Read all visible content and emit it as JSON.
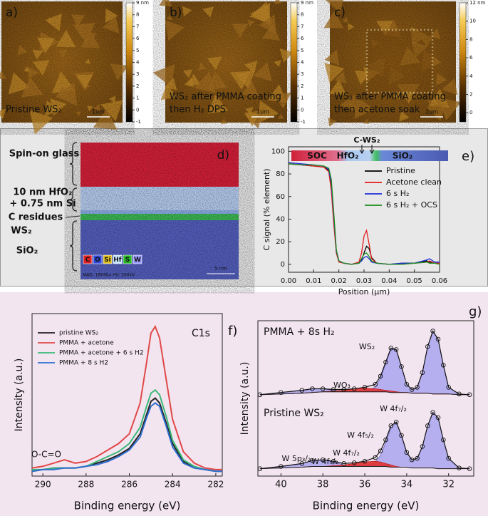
{
  "images": [
    {
      "label": "a)",
      "caption": [
        "Pristine WS₂"
      ],
      "scale_bar": "1um",
      "colorbar": {
        "lim": [
          -1,
          9
        ],
        "ticks": [
          -1,
          0,
          1,
          2,
          3,
          4,
          5,
          6,
          7,
          8,
          {
            "value": 9,
            "label": "9 nm"
          }
        ]
      }
    },
    {
      "label": "b)",
      "caption": [
        "WS₂ after PMMA coating",
        "then H₂ DPS"
      ],
      "scale_bar": "1um",
      "colorbar": {
        "lim": [
          -1,
          9
        ],
        "ticks": [
          -1,
          0,
          1,
          2,
          3,
          4,
          5,
          6,
          7,
          8,
          {
            "value": 9,
            "label": "9 nm"
          }
        ]
      }
    },
    {
      "label": "c)",
      "caption": [
        "WS₂ after PMMA coating",
        "then acetone soak"
      ],
      "scale_bar": "1um",
      "colorbar": {
        "lim": [
          -1,
          12
        ],
        "ticks": [
          0,
          2,
          4,
          6,
          8,
          10,
          {
            "value": 12,
            "label": "12 nm"
          }
        ]
      }
    }
  ],
  "eds": {
    "label": "d)",
    "layers": [
      "Spin-on glass",
      "10 nm HfO₂",
      "+ 0.75 nm Si",
      "C residues",
      "WS₂",
      "SiO₂"
    ],
    "elements": [
      "C",
      "O",
      "Si",
      "Hf",
      "S",
      "W"
    ],
    "footer": "MAG: 1800kx  HV: 200kV",
    "scale_bar": "5 nm"
  },
  "chart_data": [
    {
      "type": "line",
      "panel_label": "e)",
      "xlabel": "Position (μm)",
      "ylabel": "C signal (% element)",
      "layer_bar": [
        "SOC",
        "HfO₂",
        "C-WS₂",
        "SiO₂"
      ],
      "xlim": [
        0,
        0.06
      ],
      "ylim": [
        -7,
        104
      ],
      "xticks": [
        {
          "value": 0,
          "label": "0.00"
        },
        {
          "value": 0.01,
          "label": "0.01"
        },
        {
          "value": 0.02,
          "label": "0.02"
        },
        {
          "value": 0.03,
          "label": "0.03"
        },
        {
          "value": 0.04,
          "label": "0.04"
        },
        {
          "value": 0.05,
          "label": "0.05"
        },
        {
          "value": 0.06,
          "label": "0.06"
        }
      ],
      "yticks": [
        0,
        20,
        40,
        60,
        80,
        100
      ],
      "legend": "upper right",
      "x": [
        0,
        0.005,
        0.01,
        0.014,
        0.016,
        0.017,
        0.018,
        0.019,
        0.02,
        0.022,
        0.025,
        0.028,
        0.029,
        0.03,
        0.031,
        0.032,
        0.033,
        0.035,
        0.04,
        0.045,
        0.05,
        0.055,
        0.056,
        0.058,
        0.06
      ],
      "series": [
        {
          "name": "Pristine",
          "color": "#000000",
          "values": [
            89,
            88,
            87,
            86,
            83,
            70,
            40,
            12,
            3,
            1,
            0,
            1,
            4,
            10,
            16,
            14,
            6,
            1,
            0,
            1,
            1,
            3,
            2,
            1,
            1
          ]
        },
        {
          "name": "Acetone clean",
          "color": "#e41a1c",
          "values": [
            89,
            88,
            87,
            86,
            82,
            65,
            35,
            10,
            2,
            1,
            0,
            2,
            10,
            25,
            30,
            18,
            5,
            1,
            0,
            0,
            1,
            2,
            3,
            1,
            1
          ]
        },
        {
          "name": "6 s H₂",
          "color": "#1f2fd8",
          "values": [
            90,
            89,
            88,
            87,
            84,
            72,
            42,
            12,
            3,
            1,
            0,
            1,
            3,
            6,
            7,
            5,
            2,
            1,
            0,
            1,
            1,
            4,
            5,
            2,
            2
          ]
        },
        {
          "name": "6 s H₂ + OCS",
          "color": "#1e8c1e",
          "values": [
            89,
            88,
            88,
            87,
            85,
            75,
            45,
            13,
            3,
            1,
            0,
            1,
            5,
            9,
            10,
            7,
            3,
            1,
            0,
            0,
            1,
            2,
            1,
            1,
            0
          ]
        }
      ]
    },
    {
      "type": "line",
      "panel_label": "f)",
      "annotations": [
        "C1s",
        "O-C=O"
      ],
      "xlabel": "Binding energy (eV)",
      "ylabel": "Intensity (a.u.)",
      "xlim": [
        290.5,
        281.7
      ],
      "ylim": [
        0,
        1
      ],
      "xticks": [
        290,
        288,
        286,
        284,
        282
      ],
      "legend": "upper left",
      "x": [
        290.5,
        290,
        289.5,
        289,
        288.5,
        288,
        287.5,
        287,
        286.5,
        286,
        285.5,
        285.2,
        285,
        284.8,
        284.6,
        284.3,
        284,
        283.5,
        283,
        282.5,
        282,
        281.7
      ],
      "series": [
        {
          "name": "pristine WS₂",
          "color": "#222222",
          "values": [
            0.03,
            0.04,
            0.05,
            0.05,
            0.05,
            0.06,
            0.08,
            0.1,
            0.13,
            0.17,
            0.26,
            0.38,
            0.46,
            0.48,
            0.45,
            0.33,
            0.2,
            0.09,
            0.05,
            0.04,
            0.03,
            0.03
          ]
        },
        {
          "name": "PMMA + acetone",
          "color": "#e04848",
          "values": [
            0.05,
            0.06,
            0.08,
            0.1,
            0.08,
            0.09,
            0.12,
            0.16,
            0.2,
            0.26,
            0.45,
            0.7,
            0.88,
            0.92,
            0.85,
            0.6,
            0.35,
            0.15,
            0.08,
            0.05,
            0.04,
            0.04
          ]
        },
        {
          "name": "PMMA + acetone + 6 s H2",
          "color": "#3cb878",
          "values": [
            0.04,
            0.04,
            0.05,
            0.05,
            0.05,
            0.06,
            0.09,
            0.12,
            0.15,
            0.2,
            0.3,
            0.43,
            0.51,
            0.53,
            0.5,
            0.37,
            0.22,
            0.1,
            0.06,
            0.04,
            0.03,
            0.03
          ]
        },
        {
          "name": "PMMA + 8 s H2",
          "color": "#2f6fd0",
          "values": [
            0.03,
            0.04,
            0.04,
            0.05,
            0.05,
            0.06,
            0.07,
            0.09,
            0.12,
            0.16,
            0.24,
            0.36,
            0.43,
            0.45,
            0.43,
            0.31,
            0.18,
            0.08,
            0.05,
            0.04,
            0.03,
            0.03
          ]
        }
      ]
    },
    {
      "type": "xps",
      "panel_label": "g)",
      "xlabel": "Binding energy (eV)",
      "ylabel": "Intensity (a.u.)",
      "xlim": [
        41.1,
        30.8
      ],
      "ylim": [
        0,
        2.1
      ],
      "xticks": [
        40,
        38,
        36,
        34,
        32
      ],
      "x": [
        41,
        40,
        39,
        38.5,
        38,
        37.5,
        37,
        36.5,
        36,
        35.5,
        35.25,
        35,
        34.75,
        34.5,
        34.25,
        34,
        33.75,
        33.5,
        33.25,
        33,
        32.75,
        32.5,
        32.25,
        32,
        31.5,
        31
      ],
      "spectra": [
        {
          "label": "PMMA + 8s H₂",
          "annotations": [
            {
              "text": "WS₂",
              "color": "#3a3ad0"
            },
            {
              "text": "WO₃",
              "color": "#e02020"
            }
          ],
          "background": [
            1.1,
            1.11,
            1.12,
            1.13,
            1.14,
            1.14,
            1.14,
            1.14,
            1.14,
            1.14,
            1.14,
            1.14,
            1.13,
            1.13,
            1.13,
            1.13,
            1.12,
            1.12,
            1.12,
            1.12,
            1.11,
            1.11,
            1.11,
            1.11,
            1.1,
            1.1
          ],
          "components": [
            {
              "color": "#aaa6ee",
              "values": [
                1.1,
                1.13,
                1.16,
                1.18,
                1.18,
                1.16,
                1.15,
                1.14,
                1.15,
                1.2,
                1.32,
                1.52,
                1.72,
                1.7,
                1.48,
                1.24,
                1.17,
                1.2,
                1.4,
                1.75,
                1.96,
                1.85,
                1.5,
                1.2,
                1.11,
                1.1
              ]
            },
            {
              "color": "#e03030",
              "values": [
                1.1,
                1.11,
                1.12,
                1.13,
                1.14,
                1.15,
                1.16,
                1.18,
                1.19,
                1.18,
                1.17,
                1.16,
                1.15,
                1.14,
                1.13,
                1.13,
                1.12,
                1.12,
                1.12,
                1.12,
                1.11,
                1.11,
                1.11,
                1.11,
                1.1,
                1.1
              ]
            }
          ],
          "measured": [
            1.1,
            1.13,
            1.16,
            1.18,
            1.18,
            1.17,
            1.17,
            1.18,
            1.2,
            1.24,
            1.35,
            1.54,
            1.73,
            1.71,
            1.48,
            1.24,
            1.17,
            1.2,
            1.4,
            1.75,
            1.96,
            1.85,
            1.5,
            1.2,
            1.11,
            1.1
          ]
        },
        {
          "label": "Pristine WS₂",
          "annotations": [
            {
              "text": "W 4f₅/₂",
              "color": "#3a3ad0"
            },
            {
              "text": "W 4f₇/₂",
              "color": "#3a3ad0"
            },
            {
              "text": "W 5p₃/₂",
              "color": "#3a3ad0"
            },
            {
              "text": "W 4f₇/₂",
              "color": "#e02020"
            },
            {
              "text": "W 4f₅/₂",
              "color": "#e02020"
            }
          ],
          "background": [
            0.1,
            0.11,
            0.12,
            0.13,
            0.13,
            0.13,
            0.13,
            0.13,
            0.13,
            0.13,
            0.13,
            0.13,
            0.12,
            0.12,
            0.12,
            0.12,
            0.11,
            0.11,
            0.11,
            0.11,
            0.11,
            0.1,
            0.1,
            0.1,
            0.1,
            0.1
          ],
          "components": [
            {
              "color": "#aaa6ee",
              "values": [
                0.1,
                0.13,
                0.17,
                0.21,
                0.22,
                0.19,
                0.15,
                0.14,
                0.14,
                0.18,
                0.28,
                0.45,
                0.65,
                0.72,
                0.55,
                0.32,
                0.22,
                0.24,
                0.4,
                0.68,
                0.86,
                0.79,
                0.49,
                0.24,
                0.11,
                0.1
              ]
            },
            {
              "color": "#e03030",
              "values": [
                0.1,
                0.11,
                0.12,
                0.13,
                0.13,
                0.14,
                0.15,
                0.17,
                0.19,
                0.2,
                0.19,
                0.17,
                0.15,
                0.13,
                0.12,
                0.12,
                0.11,
                0.11,
                0.11,
                0.11,
                0.11,
                0.1,
                0.1,
                0.1,
                0.1,
                0.1
              ]
            }
          ],
          "measured": [
            0.1,
            0.13,
            0.17,
            0.21,
            0.22,
            0.2,
            0.17,
            0.18,
            0.2,
            0.25,
            0.34,
            0.49,
            0.68,
            0.73,
            0.55,
            0.32,
            0.22,
            0.24,
            0.4,
            0.68,
            0.86,
            0.79,
            0.49,
            0.24,
            0.11,
            0.1
          ]
        }
      ]
    }
  ]
}
